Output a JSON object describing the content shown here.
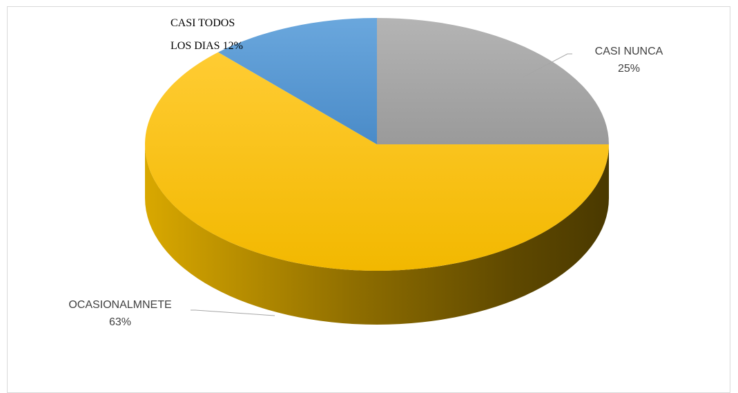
{
  "chart_data": {
    "type": "pie",
    "variant": "3d",
    "categories": [
      "CASI NUNCA",
      "OCASIONALMNETE",
      "CASI TODOS LOS DIAS"
    ],
    "values": [
      25,
      63,
      12
    ],
    "colors": [
      "#a5a5a5",
      "#ffc000",
      "#5b9bd5"
    ],
    "data_labels": [
      {
        "lines": [
          "CASI NUNCA",
          "25%"
        ]
      },
      {
        "lines": [
          "OCASIONALMNETE",
          "63%"
        ]
      },
      {
        "lines": [
          "CASI TODOS",
          "LOS DIAS 12%"
        ]
      }
    ],
    "title": "",
    "legend": "none"
  }
}
